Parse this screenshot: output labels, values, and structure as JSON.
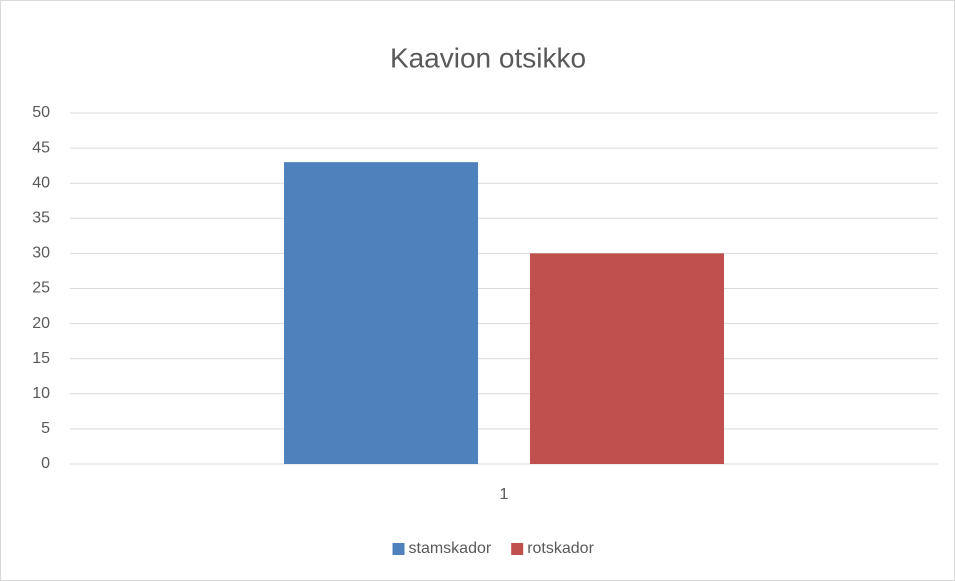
{
  "chart_data": {
    "type": "bar",
    "title": "Kaavion otsikko",
    "categories": [
      "1"
    ],
    "series": [
      {
        "name": "stamskador",
        "color": "#4f81bd",
        "values": [
          43
        ]
      },
      {
        "name": "rotskador",
        "color": "#c0504d",
        "values": [
          30
        ]
      }
    ],
    "ylim": [
      0,
      50
    ],
    "yticks": [
      0,
      5,
      10,
      15,
      20,
      25,
      30,
      35,
      40,
      45,
      50
    ],
    "grid": true,
    "legend": "bottom"
  }
}
